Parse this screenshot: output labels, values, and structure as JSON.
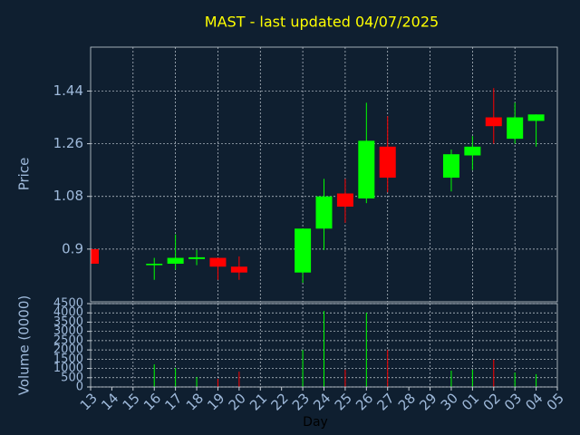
{
  "chart_data": [
    {
      "type": "candlestick",
      "title": "MAST - last updated 04/07/2025",
      "ylabel": "Price",
      "open": [
        0.9,
        null,
        null,
        0.845,
        0.85,
        0.866,
        0.87,
        0.84,
        null,
        null,
        0.82,
        0.97,
        1.09,
        1.073,
        1.25,
        null,
        null,
        1.144,
        1.22,
        1.35,
        1.277,
        1.338,
        null
      ],
      "high": [
        0.9,
        null,
        null,
        0.87,
        0.95,
        0.897,
        0.87,
        0.875,
        null,
        null,
        0.97,
        1.14,
        1.14,
        1.4,
        1.354,
        null,
        null,
        1.24,
        1.286,
        1.45,
        1.4,
        1.36,
        null
      ],
      "low": [
        0.85,
        null,
        null,
        0.795,
        0.83,
        0.845,
        0.795,
        0.795,
        null,
        null,
        0.785,
        0.897,
        0.99,
        1.057,
        1.094,
        null,
        null,
        1.097,
        1.17,
        1.26,
        1.26,
        1.25,
        null
      ],
      "close": [
        0.85,
        null,
        null,
        0.85,
        0.87,
        0.872,
        0.84,
        0.82,
        null,
        null,
        0.97,
        1.08,
        1.045,
        1.27,
        1.144,
        null,
        null,
        1.224,
        1.25,
        1.32,
        1.35,
        1.36,
        null
      ],
      "up_color": "#00ff00",
      "down_color": "#ff0000",
      "ylim": [
        0.72,
        1.59
      ],
      "yticks": [
        0.9,
        1.08,
        1.26,
        1.44
      ],
      "grid": true
    },
    {
      "type": "bar",
      "xlabel": "Day",
      "ylabel": "Volume (0000)",
      "categories": [
        "13",
        "14",
        "15",
        "16",
        "17",
        "18",
        "19",
        "20",
        "21",
        "22",
        "23",
        "24",
        "25",
        "26",
        "27",
        "28",
        "29",
        "30",
        "01",
        "02",
        "03",
        "04",
        "05"
      ],
      "values": [
        0,
        null,
        null,
        1220,
        1030,
        540,
        440,
        830,
        null,
        null,
        2000,
        4100,
        930,
        4010,
        2000,
        null,
        null,
        880,
        930,
        1470,
        780,
        690,
        null
      ],
      "ylim": [
        0,
        4500
      ],
      "yticks": [
        0,
        500,
        1000,
        1500,
        2000,
        2500,
        3000,
        3500,
        4000,
        4500
      ],
      "grid": true
    }
  ]
}
